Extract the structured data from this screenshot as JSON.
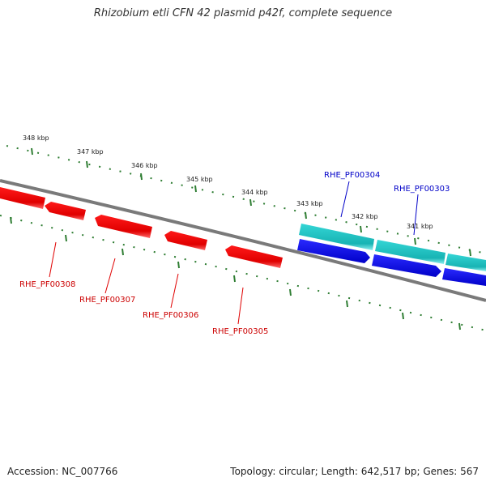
{
  "title": "Rhizobium etli CFN 42 plasmid p42f, complete sequence",
  "footer": {
    "accession": "Accession: NC_007766",
    "summary": "Topology: circular; Length: 642,517 bp; Genes: 567"
  },
  "colors": {
    "backbone": "#808080",
    "tick": "#2e7d32",
    "reverse_gene": "#e00000",
    "forward_gene": "#0a0ae0",
    "cds_highlight": "#1ec8c8"
  },
  "ruler_labels": [
    "348 kbp",
    "347 kbp",
    "346 kbp",
    "345 kbp",
    "344 kbp",
    "343 kbp",
    "342 kbp",
    "341 kbp"
  ],
  "genes": [
    {
      "name": "RHE_PF00308",
      "strand": "reverse"
    },
    {
      "name": "RHE_PF00307",
      "strand": "reverse"
    },
    {
      "name": "RHE_PF00306",
      "strand": "reverse"
    },
    {
      "name": "RHE_PF00305",
      "strand": "reverse"
    },
    {
      "name": "RHE_PF00304",
      "strand": "forward"
    },
    {
      "name": "RHE_PF00303",
      "strand": "forward"
    }
  ]
}
